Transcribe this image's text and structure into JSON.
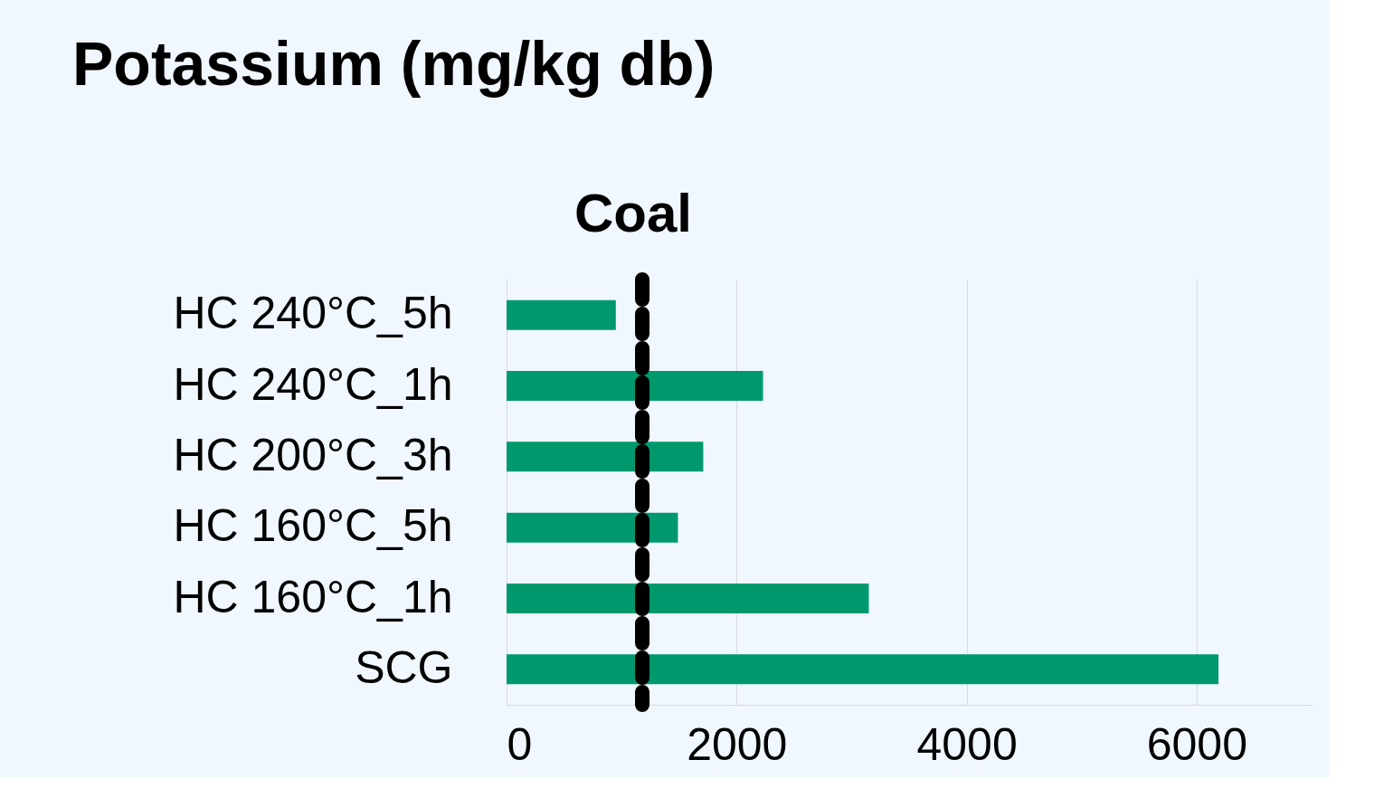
{
  "chart_data": {
    "type": "bar",
    "orientation": "horizontal",
    "title": "Potassium (mg/kg db)",
    "categories": [
      "HC 240°C_5h",
      "HC 240°C_1h",
      "HC 200°C_3h",
      "HC 160°C_5h",
      "HC 160°C_1h",
      "SCG"
    ],
    "values": [
      950,
      2230,
      1710,
      1490,
      3150,
      6190
    ],
    "color": "#00996e",
    "xlim": [
      0,
      7000
    ],
    "xticks": [
      0,
      2000,
      4000,
      6000
    ],
    "grid": "x",
    "ref_lines": [
      {
        "axis": "x",
        "value": 1180,
        "label": "Coal",
        "color": "#000000",
        "line_style": "dashed"
      }
    ]
  }
}
